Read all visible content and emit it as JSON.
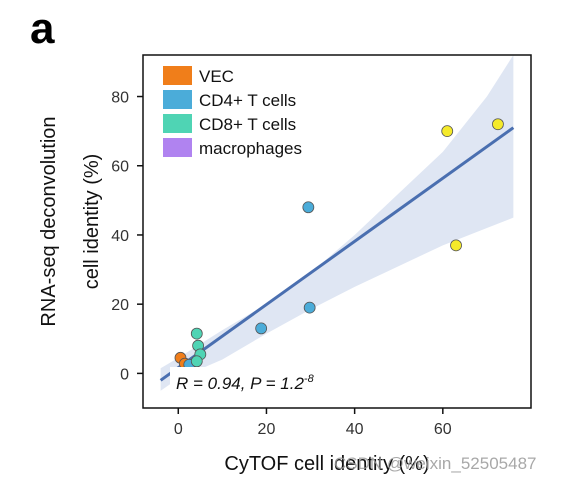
{
  "panel_label": "a",
  "watermark": "CSDN @weixin_52505487",
  "chart_data": {
    "type": "scatter",
    "xlabel": "CyTOF cell identity (%)",
    "ylabel_line1": "RNA-seq deconvolution",
    "ylabel_line2": "cell identity (%)",
    "xlim": [
      -8,
      80
    ],
    "ylim": [
      -10,
      92
    ],
    "xticks": [
      0,
      20,
      40,
      60
    ],
    "yticks": [
      0,
      20,
      40,
      60,
      80
    ],
    "grid": false,
    "legend_position": "top-left",
    "annotation": "R = 0.94, P = 1.2",
    "annotation_exponent": "-8",
    "regression": {
      "x": [
        -4,
        76
      ],
      "y": [
        -2,
        71
      ]
    },
    "confidence_band": {
      "x": [
        -4,
        0,
        10,
        20,
        30,
        40,
        50,
        60,
        70,
        76
      ],
      "upper": [
        1.5,
        4.5,
        12.5,
        20,
        29,
        40,
        52,
        64,
        80,
        92
      ],
      "lower": [
        -5,
        -1.5,
        4,
        11.5,
        18.5,
        25,
        31,
        37,
        42,
        45
      ]
    },
    "series": [
      {
        "name": "VEC",
        "color": "#f07e1a",
        "points": [
          [
            0.5,
            4.5
          ],
          [
            1.5,
            2.8
          ]
        ]
      },
      {
        "name": "CD4+ T cells",
        "color": "#4bacd9",
        "points": [
          [
            29.5,
            48
          ],
          [
            29.8,
            19
          ],
          [
            18.8,
            13
          ],
          [
            3.5,
            2.5
          ],
          [
            2.5,
            2.5
          ]
        ]
      },
      {
        "name": "CD8+ T cells",
        "color": "#4fd4b4",
        "points": [
          [
            4.2,
            11.5
          ],
          [
            4.5,
            8
          ],
          [
            5,
            5.5
          ],
          [
            4.2,
            3.5
          ]
        ]
      },
      {
        "name": "macrophages",
        "color": "#b083f0",
        "points": []
      }
    ],
    "extra_points": {
      "color": "#f5ea2a",
      "points": [
        [
          61,
          70
        ],
        [
          72.5,
          72
        ],
        [
          63,
          37
        ]
      ]
    }
  }
}
